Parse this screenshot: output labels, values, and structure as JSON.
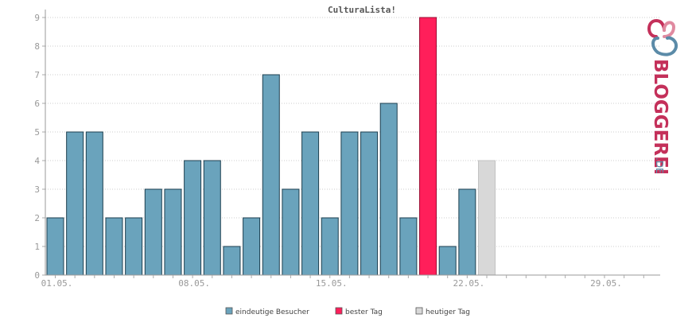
{
  "chart_data": {
    "type": "bar",
    "title": "CulturaLista!",
    "xlabel": "",
    "ylabel": "",
    "ylim": [
      0,
      9
    ],
    "yticks": [
      0,
      1,
      2,
      3,
      4,
      5,
      6,
      7,
      8,
      9
    ],
    "x_tick_labels": [
      "01.05.",
      "08.05.",
      "15.05.",
      "22.05.",
      "29.05."
    ],
    "days": 31,
    "series": [
      {
        "name": "eindeutige Besucher",
        "color": "#6aa3bc",
        "values": [
          2,
          5,
          5,
          2,
          2,
          3,
          3,
          4,
          4,
          1,
          2,
          7,
          3,
          5,
          2,
          5,
          5,
          6,
          2,
          9,
          1,
          3,
          4
        ]
      }
    ],
    "best_day_index": 19,
    "today_index": 22,
    "grid": true,
    "legend": {
      "placement": "bottom-center",
      "items": [
        {
          "label": "eindeutige Besucher",
          "color": "#6aa3bc"
        },
        {
          "label": "bester Tag",
          "color": "#ff1f5a"
        },
        {
          "label": "heutiger Tag",
          "color": "#d8d8d8"
        }
      ]
    }
  },
  "brand": {
    "logo_text": "BLOGGEREI",
    "logo_suffix": ".DE",
    "colors": {
      "primary": "#c4305a",
      "secondary": "#5b8ba8"
    }
  }
}
